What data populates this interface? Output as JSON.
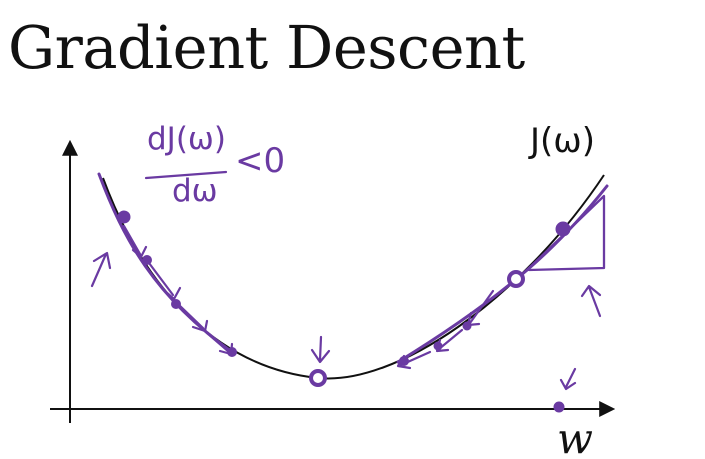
{
  "title": "Gradient Descent",
  "labels": {
    "cost_function": "J(ω)",
    "derivative_numerator": "dJ(ω)",
    "derivative_denominator": "dω",
    "derivative_relation": "<0",
    "x_axis": "w"
  },
  "colors": {
    "ink": "#111111",
    "annotation": "#6a3aa2",
    "background": "#ffffff"
  }
}
